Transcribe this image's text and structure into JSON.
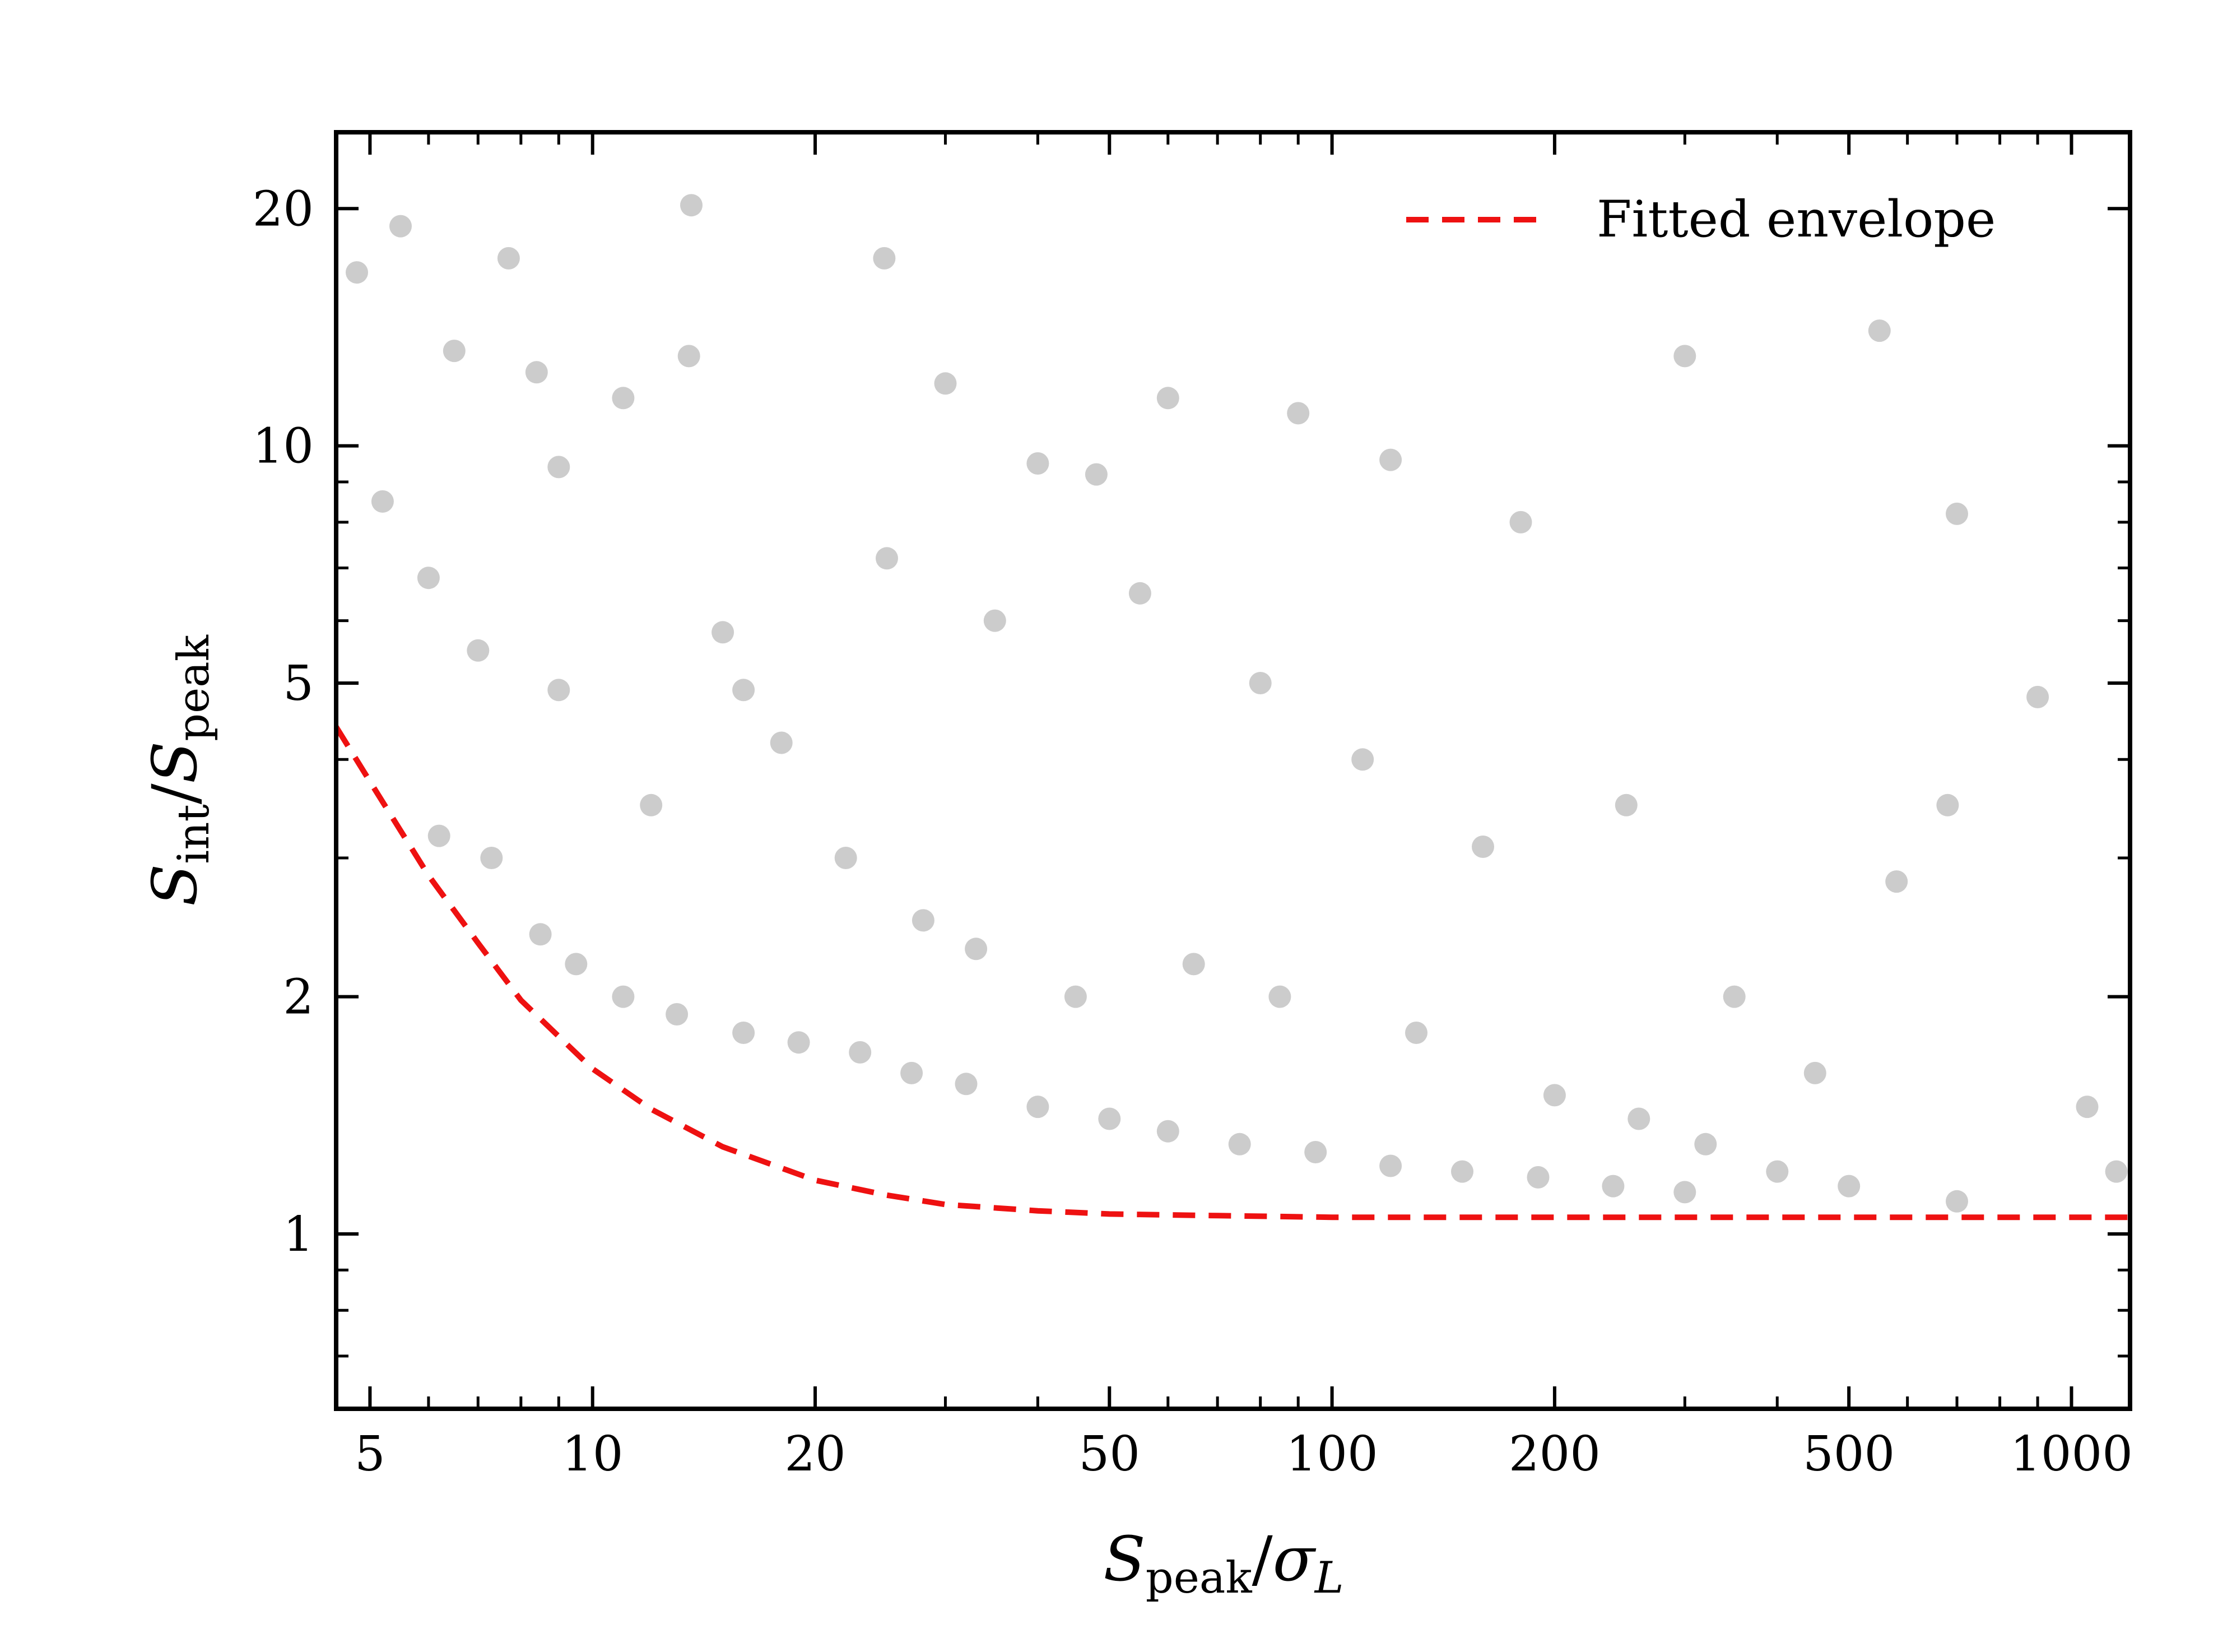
{
  "chart_data": {
    "type": "scatter",
    "title": "",
    "xlabel": {
      "main": "S",
      "sub": "peak",
      "sep": "/",
      "main2": "σ",
      "sub2": "L"
    },
    "ylabel": {
      "main": "S",
      "sub": "int",
      "sep": "/",
      "main2": "S",
      "sub2": "peak"
    },
    "x_scale": "log",
    "y_scale": "log",
    "xlim": [
      4.5,
      1200
    ],
    "ylim": [
      0.6,
      25
    ],
    "x_ticks": [
      5,
      10,
      20,
      50,
      100,
      200,
      500,
      1000
    ],
    "x_tick_labels": [
      "5",
      "10",
      "20",
      "50",
      "100",
      "200",
      "500",
      "1000"
    ],
    "y_ticks": [
      1,
      2,
      5,
      10,
      20
    ],
    "y_tick_labels": [
      "1",
      "2",
      "5",
      "10",
      "20"
    ],
    "grid": false,
    "legend": {
      "placement": "top-right",
      "entries": [
        {
          "label": "Fitted envelope",
          "style": "dashed",
          "color": "#ee1111"
        }
      ]
    },
    "series": [
      {
        "name": "",
        "kind": "points",
        "color": "#000000",
        "opacity": 0.2,
        "points": [
          [
            8.4,
            12.4
          ],
          [
            13.5,
            13
          ],
          [
            30,
            12
          ],
          [
            40,
            9.5
          ],
          [
            60,
            11.5
          ],
          [
            90,
            11
          ],
          [
            120,
            9.6
          ],
          [
            180,
            8
          ],
          [
            300,
            13
          ],
          [
            550,
            14
          ],
          [
            700,
            8.2
          ],
          [
            900,
            4.8
          ],
          [
            680,
            3.5
          ],
          [
            580,
            2.8
          ],
          [
            450,
            1.6
          ],
          [
            350,
            2.0
          ],
          [
            250,
            3.5
          ],
          [
            160,
            3.1
          ],
          [
            110,
            4.0
          ],
          [
            80,
            5.0
          ],
          [
            55,
            6.5
          ],
          [
            35,
            6.0
          ],
          [
            25,
            7.2
          ],
          [
            18,
            4.2
          ],
          [
            15,
            5.8
          ],
          [
            12,
            3.5
          ],
          [
            9,
            4.9
          ],
          [
            7,
            5.5
          ],
          [
            6,
            6.8
          ],
          [
            5.2,
            8.5
          ],
          [
            4.8,
            16.6
          ],
          [
            5.5,
            19.0
          ],
          [
            6.5,
            13.2
          ],
          [
            7.7,
            17.3
          ],
          [
            9,
            9.4
          ],
          [
            11,
            11.5
          ],
          [
            16,
            4.9
          ],
          [
            22,
            3.0
          ],
          [
            28,
            2.5
          ],
          [
            33,
            2.3
          ],
          [
            45,
            2.0
          ],
          [
            65,
            2.2
          ],
          [
            85,
            2.0
          ],
          [
            130,
            1.8
          ],
          [
            200,
            1.5
          ],
          [
            260,
            1.4
          ],
          [
            320,
            1.3
          ],
          [
            400,
            1.2
          ],
          [
            500,
            1.15
          ],
          [
            700,
            1.1
          ],
          [
            1050,
            1.45
          ],
          [
            1150,
            1.2
          ],
          [
            13.6,
            20.2
          ],
          [
            24.8,
            17.3
          ],
          [
            48,
            9.2
          ],
          [
            6.2,
            3.2
          ],
          [
            7.3,
            3.0
          ],
          [
            8.5,
            2.4
          ],
          [
            9.5,
            2.2
          ],
          [
            11,
            2.0
          ],
          [
            13,
            1.9
          ],
          [
            16,
            1.8
          ],
          [
            19,
            1.75
          ],
          [
            23,
            1.7
          ],
          [
            27,
            1.6
          ],
          [
            32,
            1.55
          ],
          [
            40,
            1.45
          ],
          [
            50,
            1.4
          ],
          [
            60,
            1.35
          ],
          [
            75,
            1.3
          ],
          [
            95,
            1.27
          ],
          [
            120,
            1.22
          ],
          [
            150,
            1.2
          ],
          [
            190,
            1.18
          ],
          [
            240,
            1.15
          ],
          [
            300,
            1.13
          ]
        ]
      },
      {
        "name": "Fitted envelope",
        "kind": "line",
        "color": "#ee1111",
        "style": "dashed",
        "x": [
          4.5,
          5,
          6,
          7,
          8,
          10,
          12,
          15,
          20,
          25,
          30,
          40,
          50,
          70,
          100,
          200,
          500,
          1000,
          1200
        ],
        "y": [
          4.4,
          3.75,
          2.85,
          2.34,
          1.98,
          1.62,
          1.44,
          1.29,
          1.17,
          1.12,
          1.09,
          1.07,
          1.06,
          1.055,
          1.05,
          1.05,
          1.05,
          1.05,
          1.05
        ]
      }
    ]
  }
}
